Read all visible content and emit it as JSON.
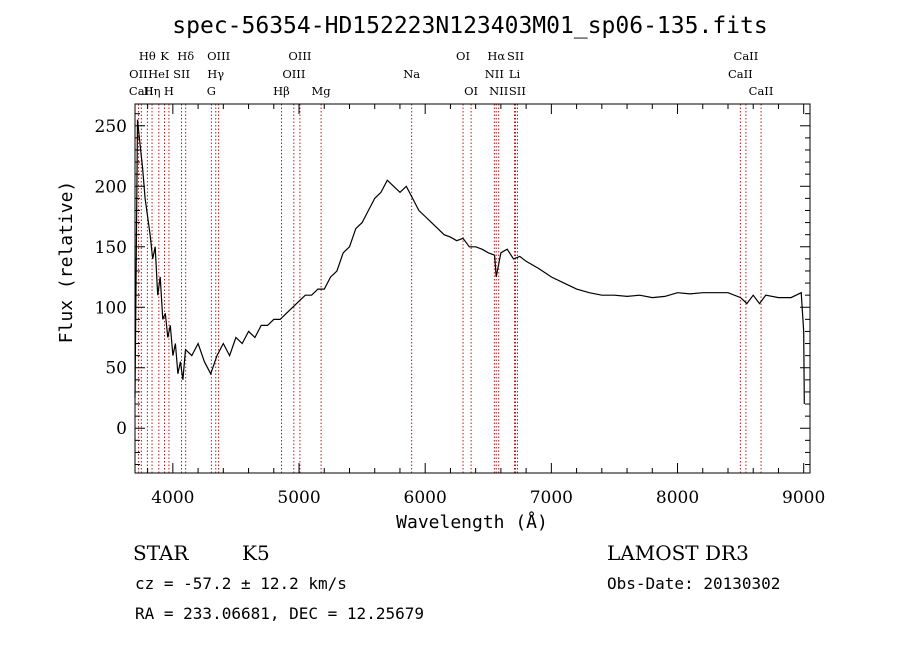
{
  "chart_data": {
    "type": "line",
    "title": "spec-56354-HD152223N123403M01_sp06-135.fits",
    "xlabel": "Wavelength (Å)",
    "ylabel": "Flux (relative)",
    "xlim": [
      3700,
      9050
    ],
    "ylim": [
      -37,
      268
    ],
    "xticks": [
      4000,
      5000,
      6000,
      7000,
      8000,
      9000
    ],
    "yticks": [
      0,
      50,
      100,
      150,
      200,
      250
    ],
    "series": [
      {
        "name": "flux",
        "x": [
          3700,
          3720,
          3740,
          3760,
          3780,
          3800,
          3820,
          3840,
          3860,
          3880,
          3900,
          3920,
          3940,
          3960,
          3980,
          4000,
          4020,
          4040,
          4060,
          4080,
          4100,
          4150,
          4200,
          4250,
          4300,
          4350,
          4400,
          4450,
          4500,
          4550,
          4600,
          4650,
          4700,
          4750,
          4800,
          4850,
          4900,
          4950,
          5000,
          5050,
          5100,
          5150,
          5200,
          5250,
          5300,
          5350,
          5400,
          5450,
          5500,
          5550,
          5600,
          5650,
          5700,
          5750,
          5800,
          5850,
          5900,
          5950,
          6000,
          6050,
          6100,
          6150,
          6200,
          6250,
          6300,
          6350,
          6400,
          6450,
          6500,
          6550,
          6563,
          6600,
          6650,
          6700,
          6750,
          6800,
          6900,
          7000,
          7100,
          7200,
          7300,
          7400,
          7500,
          7600,
          7700,
          7800,
          7900,
          8000,
          8100,
          8200,
          8300,
          8400,
          8500,
          8550,
          8600,
          8650,
          8700,
          8800,
          8900,
          8980,
          9000,
          9005
        ],
        "y": [
          25,
          255,
          235,
          215,
          190,
          175,
          160,
          140,
          150,
          110,
          125,
          90,
          95,
          75,
          85,
          60,
          70,
          45,
          55,
          40,
          65,
          60,
          70,
          55,
          45,
          60,
          70,
          60,
          75,
          70,
          80,
          75,
          85,
          85,
          90,
          90,
          95,
          100,
          105,
          110,
          110,
          115,
          115,
          125,
          130,
          145,
          150,
          165,
          170,
          180,
          190,
          195,
          205,
          200,
          195,
          200,
          190,
          180,
          175,
          170,
          165,
          160,
          158,
          155,
          157,
          150,
          150,
          148,
          145,
          143,
          125,
          145,
          148,
          140,
          142,
          138,
          132,
          125,
          120,
          115,
          112,
          110,
          110,
          109,
          110,
          108,
          109,
          112,
          111,
          112,
          112,
          112,
          108,
          103,
          110,
          103,
          110,
          108,
          108,
          112,
          80,
          20
        ]
      }
    ],
    "lines": [
      {
        "name": "Hθ",
        "wave": 3798,
        "row": 1
      },
      {
        "name": "OII",
        "wave": 3727,
        "row": 2
      },
      {
        "name": "CaII",
        "wave": 3750,
        "row": 3
      },
      {
        "name": "Hη",
        "wave": 3835,
        "row": 3
      },
      {
        "name": "K",
        "wave": 3934,
        "row": 1
      },
      {
        "name": "HeI",
        "wave": 3889,
        "row": 2
      },
      {
        "name": "SII",
        "wave": 4069,
        "row": 2
      },
      {
        "name": "H",
        "wave": 3969,
        "row": 3
      },
      {
        "name": "Hδ",
        "wave": 4102,
        "row": 1
      },
      {
        "name": "OIII",
        "wave": 4363,
        "row": 1
      },
      {
        "name": "Hγ",
        "wave": 4340,
        "row": 2
      },
      {
        "name": "G",
        "wave": 4305,
        "row": 3
      },
      {
        "name": "OIII",
        "wave": 5007,
        "row": 1
      },
      {
        "name": "OIII",
        "wave": 4959,
        "row": 2
      },
      {
        "name": "Hβ",
        "wave": 4861,
        "row": 3
      },
      {
        "name": "Mg",
        "wave": 5175,
        "row": 3
      },
      {
        "name": "Na",
        "wave": 5893,
        "row": 2
      },
      {
        "name": "OI",
        "wave": 6300,
        "row": 1
      },
      {
        "name": "OI",
        "wave": 6364,
        "row": 3
      },
      {
        "name": "Hα",
        "wave": 6563,
        "row": 1
      },
      {
        "name": "SII",
        "wave": 6716,
        "row": 1
      },
      {
        "name": "NII",
        "wave": 6548,
        "row": 2
      },
      {
        "name": "Li",
        "wave": 6708,
        "row": 2
      },
      {
        "name": "NII",
        "wave": 6583,
        "row": 3
      },
      {
        "name": "SII",
        "wave": 6731,
        "row": 3
      },
      {
        "name": "CaII",
        "wave": 8542,
        "row": 1
      },
      {
        "name": "CaII",
        "wave": 8498,
        "row": 2
      },
      {
        "name": "CaII",
        "wave": 8662,
        "row": 3
      }
    ]
  },
  "info": {
    "class": "STAR",
    "subclass": "K5",
    "redshift": "cz = -57.2 ± 12.2 km/s",
    "coords": "RA = 233.06681, DEC =  12.25679",
    "survey": "LAMOST DR3",
    "obs_date": "Obs-Date: 20130302"
  },
  "colors": {
    "spectrum": "#000000",
    "line_marker": "#b30000",
    "axes": "#000000"
  }
}
